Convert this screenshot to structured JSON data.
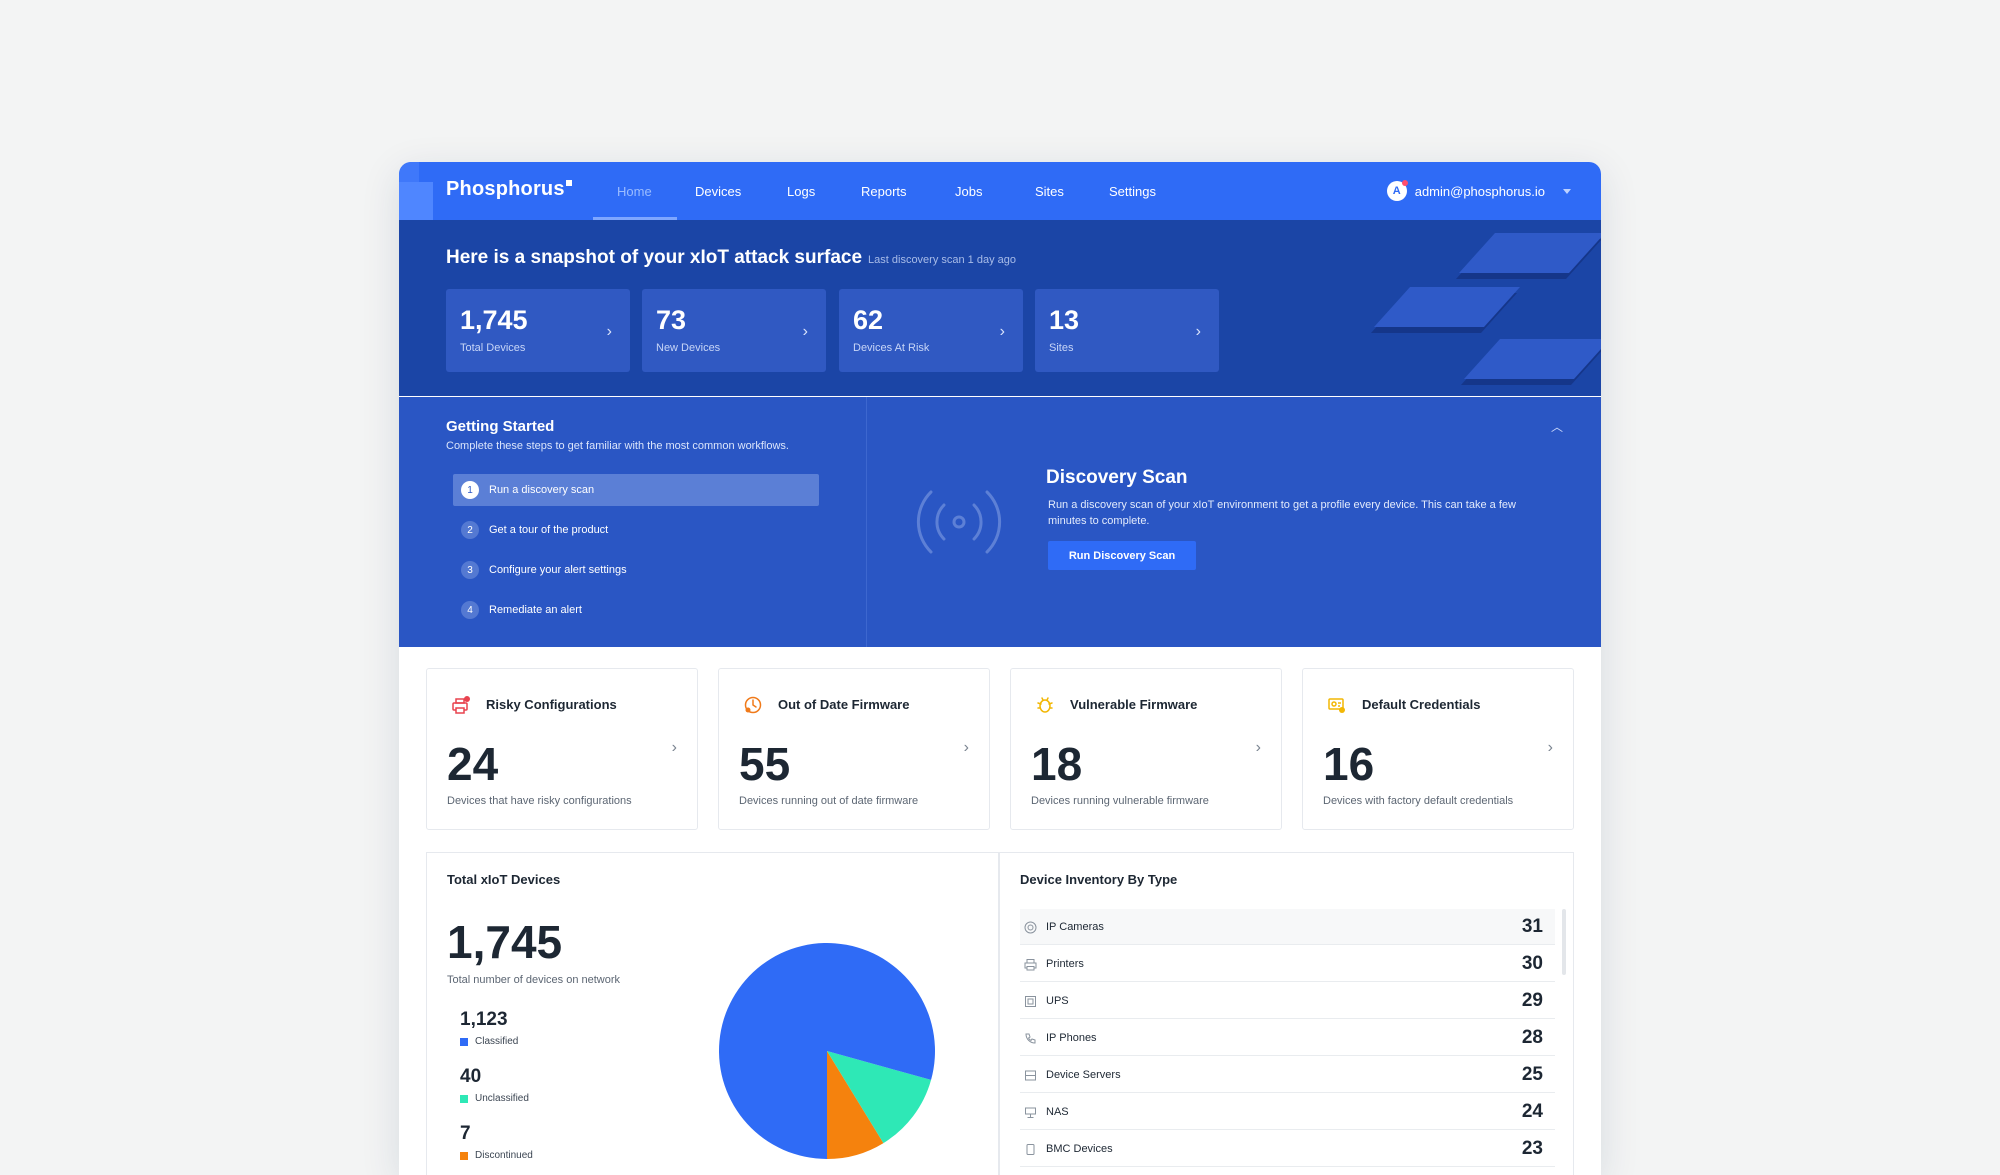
{
  "app": {
    "logo": "Phosphorus",
    "nav": [
      {
        "label": "Home",
        "active": true
      },
      {
        "label": "Devices"
      },
      {
        "label": "Logs"
      },
      {
        "label": "Reports"
      },
      {
        "label": "Jobs"
      },
      {
        "label": "Sites"
      },
      {
        "label": "Settings"
      }
    ],
    "user": {
      "initial": "A",
      "email": "admin@phosphorus.io"
    }
  },
  "hero": {
    "title": "Here is a snapshot of your xIoT attack surface",
    "subtitle": "Last discovery scan 1 day ago",
    "stats": [
      {
        "value": "1,745",
        "label": "Total Devices"
      },
      {
        "value": "73",
        "label": "New Devices"
      },
      {
        "value": "62",
        "label": "Devices At Risk"
      },
      {
        "value": "13",
        "label": "Sites"
      }
    ]
  },
  "getting_started": {
    "title": "Getting Started",
    "subtitle": "Complete these steps to get familiar with the most common workflows.",
    "steps": [
      {
        "num": "1",
        "label": "Run a discovery scan"
      },
      {
        "num": "2",
        "label": "Get a tour of the product"
      },
      {
        "num": "3",
        "label": "Configure your alert settings"
      },
      {
        "num": "4",
        "label": "Remediate an alert"
      }
    ],
    "active_step": 1,
    "detail": {
      "title": "Discovery Scan",
      "description": "Run a discovery scan of your xIoT environment to get a profile every device. This can take a few minutes to complete.",
      "button": "Run Discovery Scan"
    }
  },
  "metrics": [
    {
      "title": "Risky Configurations",
      "value": "24",
      "desc": "Devices that have risky configurations",
      "icon": "printer-warning-icon",
      "color": "#e8434f"
    },
    {
      "title": "Out of Date Firmware",
      "value": "55",
      "desc": "Devices running out of date firmware",
      "icon": "firmware-clock-icon",
      "color": "#f07a1a"
    },
    {
      "title": "Vulnerable Firmware",
      "value": "18",
      "desc": "Devices running vulnerable firmware",
      "icon": "bug-icon",
      "color": "#f2b705"
    },
    {
      "title": "Default Credentials",
      "value": "16",
      "desc": "Devices with factory default credentials",
      "icon": "credentials-icon",
      "color": "#f2b705"
    }
  ],
  "total_devices": {
    "title": "Total xIoT Devices",
    "value": "1,745",
    "desc": "Total number of devices on network",
    "legend": [
      {
        "value": "1,123",
        "label": "Classified",
        "color": "#2f6bf6"
      },
      {
        "value": "40",
        "label": "Unclassified",
        "color": "#2ee8b6"
      },
      {
        "value": "7",
        "label": "Discontinued",
        "color": "#f5820d"
      }
    ]
  },
  "chart_data": {
    "type": "pie",
    "slices": [
      {
        "label": "Classified",
        "value": 1123,
        "color": "#2f6bf6"
      },
      {
        "label": "Unclassified",
        "value": 40,
        "color": "#2ee8b6"
      },
      {
        "label": "Discontinued",
        "value": 7,
        "color": "#f5820d"
      }
    ]
  },
  "inventory": {
    "title": "Device Inventory By Type",
    "rows": [
      {
        "label": "IP Cameras",
        "count": "31",
        "icon": "camera-icon"
      },
      {
        "label": "Printers",
        "count": "30",
        "icon": "printer-icon"
      },
      {
        "label": "UPS",
        "count": "29",
        "icon": "ups-icon"
      },
      {
        "label": "IP Phones",
        "count": "28",
        "icon": "phone-icon"
      },
      {
        "label": "Device Servers",
        "count": "25",
        "icon": "server-icon"
      },
      {
        "label": "NAS",
        "count": "24",
        "icon": "nas-icon"
      },
      {
        "label": "BMC Devices",
        "count": "23",
        "icon": "bmc-icon"
      }
    ]
  }
}
